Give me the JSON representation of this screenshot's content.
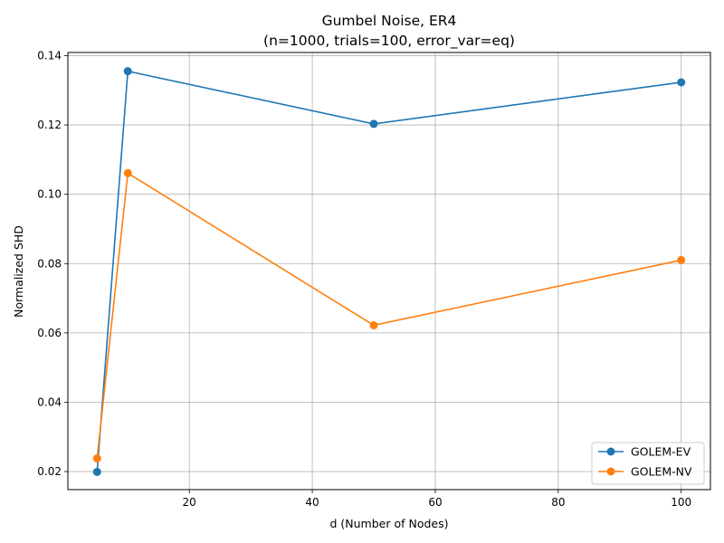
{
  "chart_data": {
    "type": "line",
    "title": "Gumbel Noise, ER4",
    "subtitle": "(n=1000, trials=100, error_var=eq)",
    "xlabel": "d (Number of Nodes)",
    "ylabel": "Normalized SHD",
    "x": [
      5,
      10,
      50,
      100
    ],
    "xlim": [
      0.25,
      104.75
    ],
    "ylim": [
      0.0148,
      0.1409
    ],
    "xticks": [
      20,
      40,
      60,
      80,
      100
    ],
    "yticks": [
      0.02,
      0.04,
      0.06,
      0.08,
      0.1,
      0.12,
      0.14
    ],
    "ytick_labels": [
      "0.02",
      "0.04",
      "0.06",
      "0.08",
      "0.10",
      "0.12",
      "0.14"
    ],
    "grid": true,
    "legend_position": "lower right",
    "series": [
      {
        "name": "GOLEM-EV",
        "color": "#1f77b4",
        "values": [
          0.0199,
          0.1355,
          0.1203,
          0.1323
        ]
      },
      {
        "name": "GOLEM-NV",
        "color": "#ff7f0e",
        "values": [
          0.0238,
          0.1061,
          0.0622,
          0.081
        ]
      }
    ]
  }
}
